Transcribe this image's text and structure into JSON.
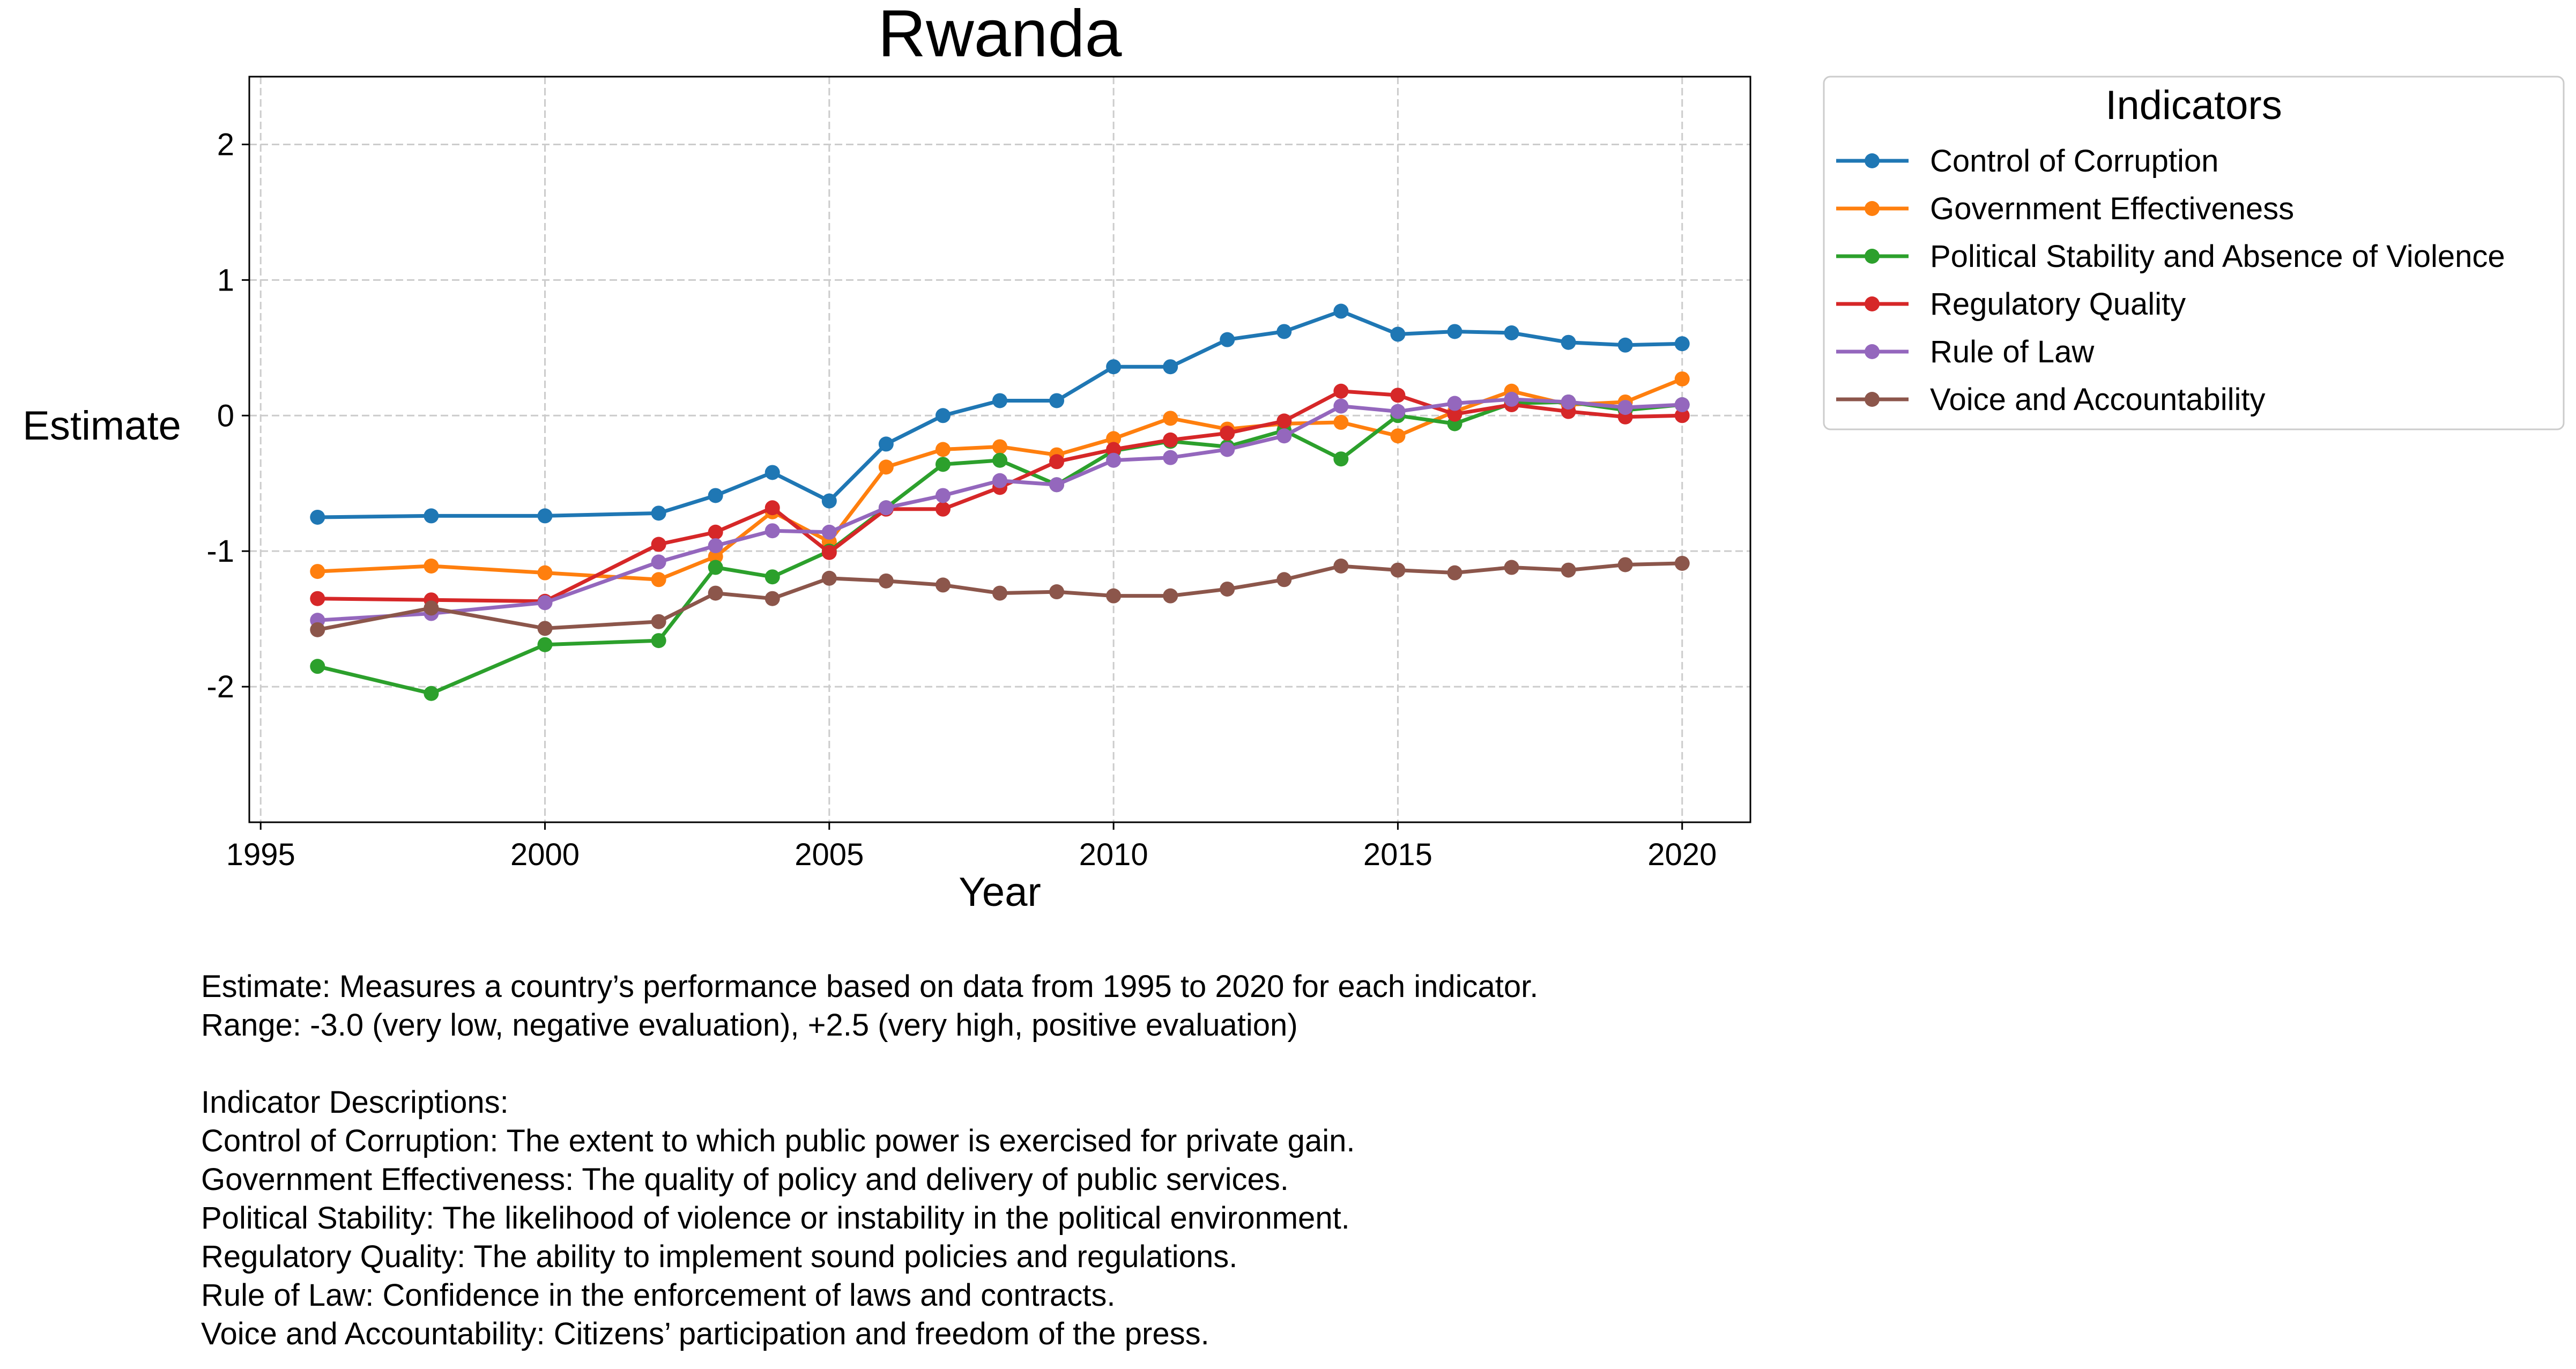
{
  "chart_data": {
    "type": "line",
    "title": "Rwanda",
    "xlabel": "Year",
    "ylabel": "Estimate",
    "xlim": [
      1994.8,
      2021.2
    ],
    "ylim": [
      -3.0,
      2.5
    ],
    "xticks": [
      1995,
      2000,
      2005,
      2010,
      2015,
      2020
    ],
    "yticks": [
      -2,
      -1,
      0,
      1,
      2
    ],
    "grid": true,
    "legend_title": "Indicators",
    "legend_position": "outside-top-right",
    "x": [
      1996,
      1998,
      2000,
      2002,
      2003,
      2004,
      2005,
      2006,
      2007,
      2008,
      2009,
      2010,
      2011,
      2012,
      2013,
      2014,
      2015,
      2016,
      2017,
      2018,
      2019,
      2020
    ],
    "series": [
      {
        "name": "Control of Corruption",
        "color": "#1f77b4",
        "values": [
          -0.75,
          -0.74,
          -0.74,
          -0.72,
          -0.59,
          -0.42,
          -0.63,
          -0.21,
          0.0,
          0.11,
          0.11,
          0.36,
          0.36,
          0.56,
          0.62,
          0.77,
          0.6,
          0.62,
          0.61,
          0.54,
          0.52,
          0.53
        ]
      },
      {
        "name": "Government Effectiveness",
        "color": "#ff7f0e",
        "values": [
          -1.15,
          -1.11,
          -1.16,
          -1.21,
          -1.04,
          -0.71,
          -0.93,
          -0.38,
          -0.25,
          -0.23,
          -0.29,
          -0.17,
          -0.02,
          -0.1,
          -0.06,
          -0.05,
          -0.15,
          0.03,
          0.18,
          0.08,
          0.1,
          0.27
        ]
      },
      {
        "name": "Political Stability and Absence of Violence",
        "color": "#2ca02c",
        "values": [
          -1.85,
          -2.05,
          -1.69,
          -1.66,
          -1.12,
          -1.19,
          -1.0,
          -0.68,
          -0.36,
          -0.33,
          -0.51,
          -0.26,
          -0.19,
          -0.23,
          -0.11,
          -0.32,
          0.0,
          -0.06,
          0.09,
          0.1,
          0.04,
          0.08
        ]
      },
      {
        "name": "Regulatory Quality",
        "color": "#d62728",
        "values": [
          -1.35,
          -1.36,
          -1.37,
          -0.95,
          -0.86,
          -0.68,
          -1.01,
          -0.69,
          -0.69,
          -0.53,
          -0.34,
          -0.25,
          -0.18,
          -0.13,
          -0.04,
          0.18,
          0.15,
          0.01,
          0.08,
          0.03,
          -0.01,
          0.0
        ]
      },
      {
        "name": "Rule of Law",
        "color": "#9467bd",
        "values": [
          -1.51,
          -1.46,
          -1.38,
          -1.08,
          -0.96,
          -0.85,
          -0.86,
          -0.68,
          -0.59,
          -0.48,
          -0.51,
          -0.33,
          -0.31,
          -0.25,
          -0.15,
          0.07,
          0.03,
          0.09,
          0.12,
          0.1,
          0.06,
          0.08
        ]
      },
      {
        "name": "Voice and Accountability",
        "color": "#8c564b",
        "values": [
          -1.58,
          -1.42,
          -1.57,
          -1.52,
          -1.31,
          -1.35,
          -1.2,
          -1.22,
          -1.25,
          -1.31,
          -1.3,
          -1.33,
          -1.33,
          -1.28,
          -1.21,
          -1.11,
          -1.14,
          -1.16,
          -1.12,
          -1.14,
          -1.1,
          -1.09
        ]
      }
    ]
  },
  "notes": {
    "line1": "Estimate: Measures a country’s performance based on data from 1995 to 2020 for each indicator.",
    "line2": "Range: -3.0 (very low, negative evaluation), +2.5 (very high, positive evaluation)",
    "heading": "Indicator Descriptions:",
    "desc": [
      "Control of Corruption: The extent to which public power is exercised for private gain.",
      "Government Effectiveness: The quality of policy and delivery of public services.",
      "Political Stability: The likelihood of violence or instability in the political environment.",
      "Regulatory Quality: The ability to implement sound policies and regulations.",
      "Rule of Law: Confidence in the enforcement of laws and contracts.",
      "Voice and Accountability: Citizens’ participation and freedom of the press."
    ]
  }
}
